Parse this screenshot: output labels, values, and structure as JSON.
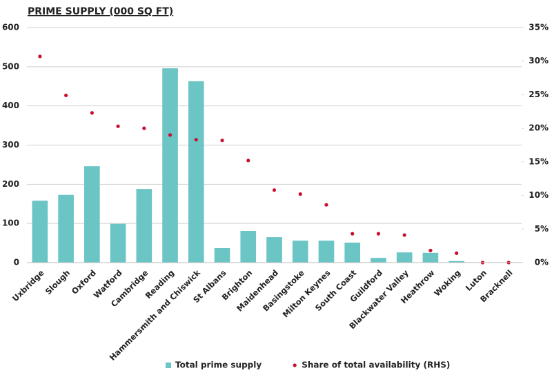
{
  "chart_data": {
    "type": "bar",
    "title": "PRIME SUPPLY (000 SQ FT)",
    "categories": [
      "Uxbridge",
      "Slough",
      "Oxford",
      "Watford",
      "Cambridge",
      "Reading",
      "Hammersmith and Chiswick",
      "St Albans",
      "Brighton",
      "Maidenhead",
      "Basingstoke",
      "Milton Keynes",
      "South Coast",
      "Guildford",
      "Blackwater Valley",
      "Heathrow",
      "Woking",
      "Luton",
      "Bracknell"
    ],
    "series": [
      {
        "name": "Total prime supply",
        "type": "bar",
        "color": "#6cc5c5",
        "values": [
          158,
          173,
          246,
          99,
          188,
          496,
          463,
          37,
          81,
          65,
          56,
          56,
          51,
          12,
          26,
          25,
          4,
          0,
          0
        ]
      },
      {
        "name": "Share of total availability (RHS)",
        "type": "scatter",
        "axis": "y2",
        "color": "#c8102e",
        "values": [
          30.7,
          24.9,
          22.3,
          20.3,
          20.0,
          19.0,
          18.3,
          18.2,
          15.2,
          10.8,
          10.2,
          8.6,
          4.3,
          4.3,
          4.1,
          1.8,
          1.4,
          0,
          0
        ]
      }
    ],
    "ylim": [
      0,
      600
    ],
    "yticks": [
      0,
      100,
      200,
      300,
      400,
      500,
      600
    ],
    "y2lim": [
      0,
      35
    ],
    "y2ticks": [
      {
        "value": 0,
        "label": "0%"
      },
      {
        "value": 5,
        "label": "5%"
      },
      {
        "value": 10,
        "label": "10%"
      },
      {
        "value": 15,
        "label": "15%"
      },
      {
        "value": 20,
        "label": "20%"
      },
      {
        "value": 25,
        "label": "25%"
      },
      {
        "value": 30,
        "label": "30%"
      },
      {
        "value": 35,
        "label": "35%"
      }
    ],
    "grid": true,
    "legend": "bottom"
  }
}
